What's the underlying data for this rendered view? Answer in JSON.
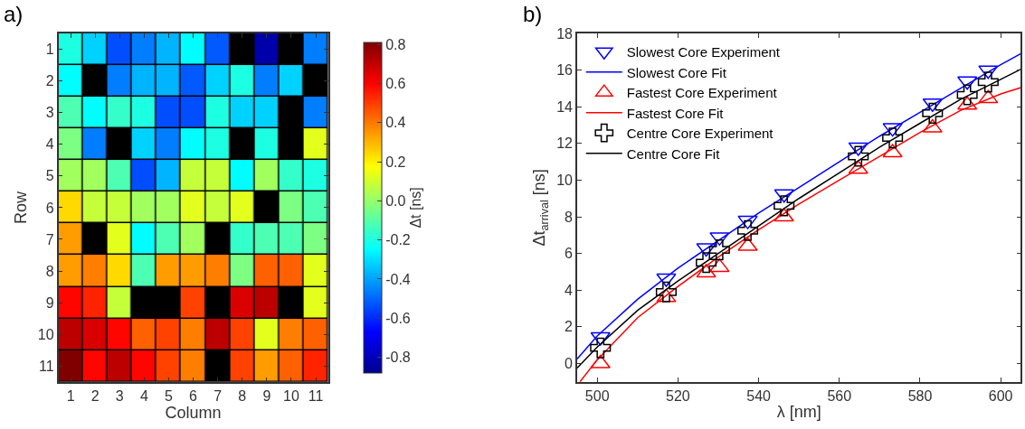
{
  "chart_data": [
    {
      "type": "heatmap",
      "title": "a)",
      "xlabel": "Column",
      "ylabel": "Row",
      "clabel": "Δt [ns]",
      "categories": [
        "1",
        "2",
        "3",
        "4",
        "5",
        "6",
        "7",
        "8",
        "9",
        "10",
        "11"
      ],
      "y_categories": [
        "1",
        "2",
        "3",
        "4",
        "5",
        "6",
        "7",
        "8",
        "9",
        "10",
        "11"
      ],
      "cells": [
        [
          -0.2,
          -0.32,
          -0.54,
          -0.46,
          -0.37,
          -0.25,
          -0.52,
          null,
          -0.83,
          null,
          -0.46
        ],
        [
          -0.25,
          null,
          -0.46,
          -0.37,
          -0.37,
          -0.52,
          -0.32,
          -0.2,
          -0.46,
          -0.32,
          null
        ],
        [
          -0.12,
          -0.25,
          -0.16,
          -0.2,
          -0.54,
          -0.54,
          -0.2,
          -0.32,
          -0.32,
          null,
          -0.46
        ],
        [
          -0.04,
          -0.46,
          null,
          -0.32,
          -0.46,
          -0.25,
          -0.2,
          null,
          -0.2,
          null,
          0.13
        ],
        [
          0.02,
          0.02,
          -0.12,
          -0.54,
          -0.37,
          0.08,
          0.08,
          -0.25,
          0.02,
          -0.16,
          -0.2
        ],
        [
          0.24,
          0.08,
          0.08,
          0.02,
          0.02,
          0.13,
          0.08,
          0.13,
          null,
          -0.04,
          -0.12
        ],
        [
          0.34,
          null,
          0.13,
          -0.25,
          -0.12,
          0.02,
          null,
          -0.16,
          -0.12,
          -0.12,
          -0.04
        ],
        [
          0.34,
          0.39,
          0.24,
          -0.12,
          0.34,
          0.34,
          0.39,
          -0.04,
          0.44,
          0.44,
          0.13
        ],
        [
          0.59,
          0.54,
          0.08,
          null,
          null,
          0.49,
          null,
          0.66,
          0.71,
          null,
          0.13
        ],
        [
          0.71,
          0.66,
          0.59,
          0.44,
          0.49,
          0.39,
          0.71,
          0.49,
          0.13,
          0.39,
          0.44
        ],
        [
          0.81,
          0.59,
          0.71,
          0.59,
          0.49,
          0.39,
          null,
          0.49,
          0.34,
          0.44,
          0.54
        ]
      ],
      "clim": [
        -0.88,
        0.81
      ],
      "cticks": [
        0.8,
        0.6,
        0.4,
        0.2,
        {
          "value": 0,
          "label": "0.0"
        },
        -0.2,
        -0.4,
        -0.6,
        -0.8
      ]
    },
    {
      "type": "scatter",
      "title": "b)",
      "xlabel": "λ [nm]",
      "ylabel": "Δt$_{arrival}$ [ns]",
      "xlim": [
        495,
        605
      ],
      "ylim": [
        -1,
        18
      ],
      "xticks": [
        500,
        520,
        540,
        560,
        580,
        600
      ],
      "yticks": [
        0,
        2,
        4,
        6,
        8,
        10,
        12,
        14,
        16,
        18
      ],
      "legend": "top left",
      "series": [
        {
          "name": "Slowest Core Experiment",
          "type": "scatter",
          "marker": "triangle-down",
          "color": "#0000ff",
          "x": [
            500.8,
            517.1,
            527.0,
            530.3,
            537.3,
            546.3,
            564.7,
            573.2,
            583.1,
            591.7,
            596.9
          ],
          "values": [
            1.45,
            4.65,
            6.3,
            6.9,
            7.8,
            9.25,
            11.8,
            12.85,
            14.2,
            15.4,
            16.0
          ]
        },
        {
          "name": "Slowest Core Fit",
          "type": "line",
          "color": "#0000ff",
          "x": [
            495,
            500,
            510,
            520,
            530,
            540,
            550,
            560,
            570,
            580,
            590,
            600,
            605
          ],
          "values": [
            0.25,
            1.5,
            3.5,
            5.2,
            6.7,
            8.2,
            9.6,
            11.0,
            12.4,
            13.7,
            15.0,
            16.3,
            16.9
          ]
        },
        {
          "name": "Fastest Core Experiment",
          "type": "scatter",
          "marker": "triangle",
          "color": "#ff0000",
          "x": [
            500.8,
            517.1,
            527.0,
            530.3,
            537.3,
            546.3,
            564.7,
            573.2,
            583.1,
            591.7,
            596.9
          ],
          "values": [
            0.0,
            3.6,
            4.95,
            5.25,
            6.4,
            8.0,
            10.6,
            11.5,
            12.85,
            14.1,
            14.45
          ]
        },
        {
          "name": "Fastest Core Fit",
          "type": "line",
          "color": "#ff0000",
          "x": [
            495.7,
            500,
            510,
            520,
            530,
            540,
            550,
            560,
            570,
            580,
            590,
            600,
            605
          ],
          "values": [
            -1,
            0.2,
            2.5,
            4.2,
            5.8,
            7.3,
            8.7,
            10.0,
            11.3,
            12.6,
            13.8,
            14.7,
            15.05
          ]
        },
        {
          "name": "Centre Core Experiment",
          "type": "scatter",
          "marker": "cross",
          "color": "#000000",
          "x": [
            500.8,
            517.1,
            527.0,
            530.3,
            537.3,
            546.3,
            564.7,
            573.2,
            583.1,
            591.7,
            596.9
          ],
          "values": [
            0.85,
            3.9,
            5.5,
            6.2,
            7.25,
            8.6,
            11.3,
            12.3,
            13.65,
            14.65,
            15.35
          ]
        },
        {
          "name": "Centre Core Fit",
          "type": "line",
          "color": "#000000",
          "x": [
            495,
            500,
            510,
            520,
            530,
            540,
            550,
            560,
            570,
            580,
            590,
            600,
            605
          ],
          "values": [
            -0.25,
            0.9,
            2.9,
            4.5,
            6.0,
            7.5,
            9.0,
            10.4,
            11.8,
            13.1,
            14.4,
            15.5,
            16.05
          ]
        }
      ]
    }
  ]
}
